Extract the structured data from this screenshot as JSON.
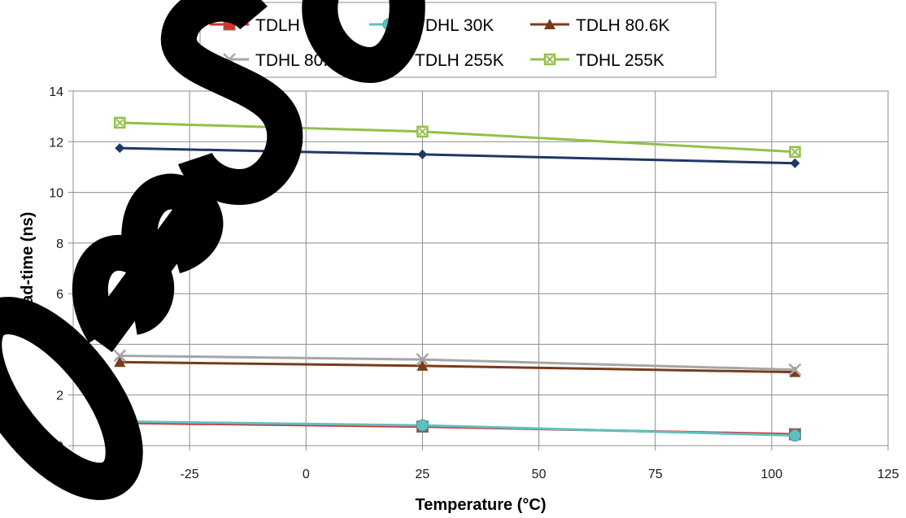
{
  "chart_data": {
    "type": "line",
    "title": "",
    "xlabel": "Temperature (°C)",
    "ylabel": "Dead-time (ns)",
    "xlim": [
      -50,
      125
    ],
    "ylim": [
      0,
      14
    ],
    "x_ticks": [
      -50,
      -25,
      0,
      25,
      50,
      75,
      100,
      125
    ],
    "y_ticks": [
      0,
      2,
      4,
      6,
      8,
      10,
      12,
      14
    ],
    "grid": true,
    "legend_position": "top-center",
    "watermark": "OBSOLETE",
    "series": [
      {
        "name": "TDLH 30K",
        "x": [
          -40,
          25,
          105
        ],
        "y": [
          0.9,
          0.75,
          0.45
        ],
        "color": "#d62d2d",
        "marker": "square"
      },
      {
        "name": "TDHL 30K",
        "x": [
          -40,
          25,
          105
        ],
        "y": [
          0.95,
          0.8,
          0.4
        ],
        "color": "#5fbfc0",
        "marker": "circle"
      },
      {
        "name": "TDLH 80.6K",
        "x": [
          -40,
          25,
          105
        ],
        "y": [
          3.3,
          3.15,
          2.9
        ],
        "color": "#7a3b1a",
        "marker": "triangle"
      },
      {
        "name": "TDHL 80.6K",
        "x": [
          -40,
          25,
          105
        ],
        "y": [
          3.55,
          3.4,
          3.0
        ],
        "color": "#a6a6a6",
        "marker": "x"
      },
      {
        "name": "TDLH 255K",
        "x": [
          -40,
          25,
          105
        ],
        "y": [
          11.75,
          11.5,
          11.15
        ],
        "color": "#1f3864",
        "marker": "diamond"
      },
      {
        "name": "TDHL 255K",
        "x": [
          -40,
          25,
          105
        ],
        "y": [
          12.75,
          12.4,
          11.6
        ],
        "color": "#92c04a",
        "marker": "square-x"
      }
    ]
  }
}
